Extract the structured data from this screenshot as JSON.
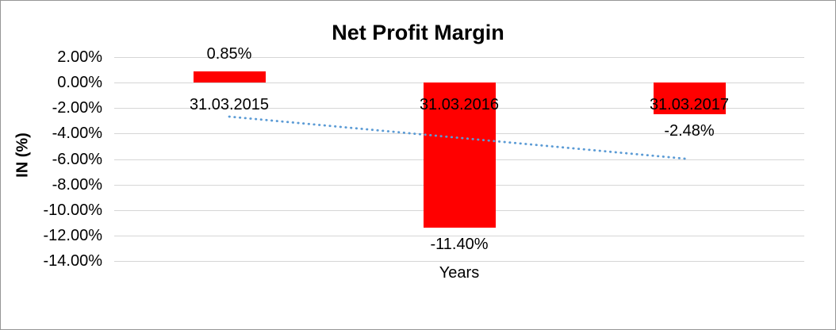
{
  "chart_data": {
    "type": "bar",
    "title": "Net Profit Margin",
    "categories": [
      "31.03.2015",
      "31.03.2016",
      "31.03.2017"
    ],
    "values": [
      0.85,
      -11.4,
      -2.48
    ],
    "data_labels": [
      "0.85%",
      "-11.40%",
      "-2.48%"
    ],
    "xlabel": "Years",
    "ylabel": "IN (%)",
    "ylim": [
      -14,
      2
    ],
    "ytick_step": 2,
    "ytick_labels": [
      "2.00%",
      "0.00%",
      "-2.00%",
      "-4.00%",
      "-6.00%",
      "-8.00%",
      "-10.00%",
      "-12.00%",
      "-14.00%"
    ],
    "grid": true,
    "legend": "none",
    "bar_color": "#ff0000",
    "gridline_color": "#d6d6d6",
    "trendline": {
      "type": "linear",
      "style": "dotted",
      "color": "#5b9bd5",
      "start_value": -2.67,
      "end_value": -6.0
    }
  }
}
